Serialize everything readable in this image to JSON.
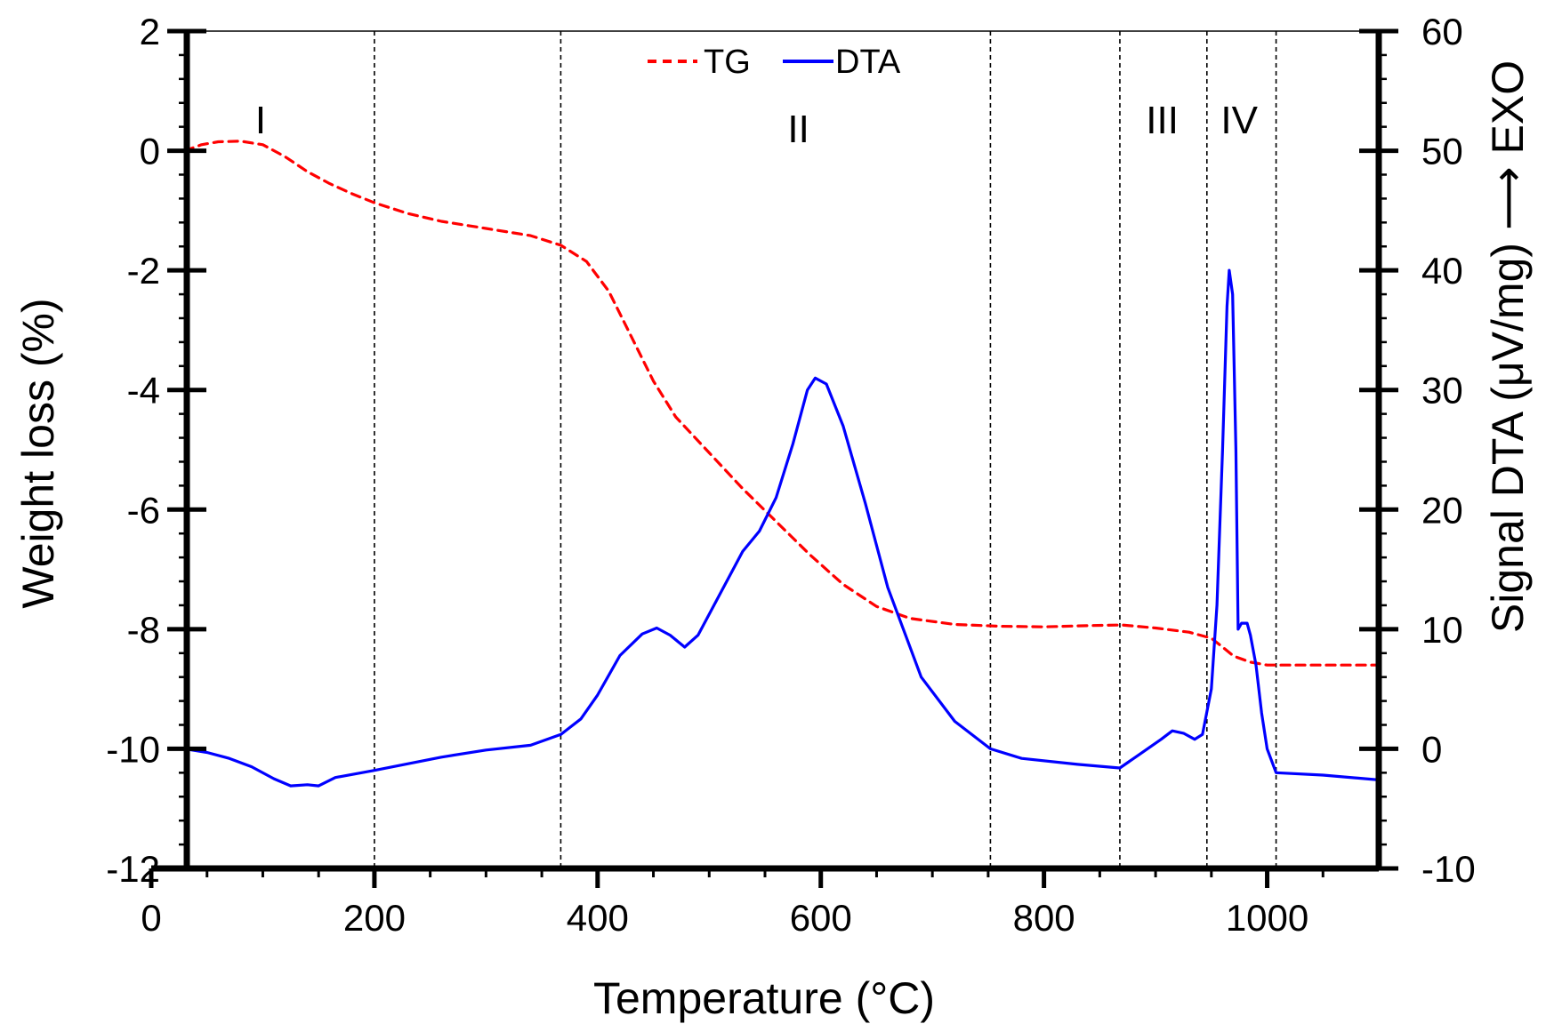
{
  "chart_data": {
    "type": "line",
    "xlabel": "Temperature (°C)",
    "ylabel": "Weight loss (%)",
    "y2label": "Signal DTA (μV/mg)  ⟶  EXO",
    "xlim": [
      0,
      1100
    ],
    "ylim": [
      -12,
      2
    ],
    "y2lim": [
      -10,
      60
    ],
    "xticks": [
      0,
      200,
      400,
      600,
      800,
      1000
    ],
    "yticks": [
      2,
      0,
      -2,
      -4,
      -6,
      -8,
      -10,
      -12
    ],
    "y2ticks": [
      60,
      50,
      40,
      30,
      20,
      10,
      0,
      -10
    ],
    "legend_position": "top-center",
    "grid": false,
    "region_boundaries": [
      200,
      367,
      752,
      868,
      946,
      1008
    ],
    "regions": [
      {
        "label": "I",
        "x": 98
      },
      {
        "label": "II",
        "x": 580
      },
      {
        "label": "III",
        "x": 906
      },
      {
        "label": "IV",
        "x": 975
      }
    ],
    "series": [
      {
        "name": "TG",
        "axis": "left",
        "color": "#ff0000",
        "style": "dashed",
        "points": [
          [
            30,
            0
          ],
          [
            45,
            0.1
          ],
          [
            60,
            0.15
          ],
          [
            80,
            0.16
          ],
          [
            100,
            0.1
          ],
          [
            120,
            -0.1
          ],
          [
            140,
            -0.35
          ],
          [
            160,
            -0.55
          ],
          [
            180,
            -0.72
          ],
          [
            200,
            -0.87
          ],
          [
            230,
            -1.05
          ],
          [
            260,
            -1.18
          ],
          [
            300,
            -1.3
          ],
          [
            340,
            -1.42
          ],
          [
            367,
            -1.58
          ],
          [
            390,
            -1.85
          ],
          [
            410,
            -2.35
          ],
          [
            430,
            -3.1
          ],
          [
            450,
            -3.85
          ],
          [
            470,
            -4.45
          ],
          [
            500,
            -5.05
          ],
          [
            530,
            -5.65
          ],
          [
            560,
            -6.2
          ],
          [
            590,
            -6.75
          ],
          [
            620,
            -7.25
          ],
          [
            650,
            -7.62
          ],
          [
            680,
            -7.82
          ],
          [
            720,
            -7.92
          ],
          [
            760,
            -7.95
          ],
          [
            800,
            -7.96
          ],
          [
            840,
            -7.94
          ],
          [
            870,
            -7.93
          ],
          [
            900,
            -7.98
          ],
          [
            930,
            -8.05
          ],
          [
            950,
            -8.15
          ],
          [
            960,
            -8.3
          ],
          [
            970,
            -8.45
          ],
          [
            985,
            -8.55
          ],
          [
            1000,
            -8.6
          ],
          [
            1050,
            -8.6
          ],
          [
            1100,
            -8.6
          ]
        ]
      },
      {
        "name": "DTA",
        "axis": "right",
        "color": "#0000ff",
        "style": "solid",
        "points": [
          [
            30,
            0
          ],
          [
            50,
            -0.3
          ],
          [
            70,
            -0.8
          ],
          [
            90,
            -1.5
          ],
          [
            110,
            -2.5
          ],
          [
            125,
            -3.1
          ],
          [
            140,
            -3.0
          ],
          [
            150,
            -3.1
          ],
          [
            165,
            -2.4
          ],
          [
            200,
            -1.8
          ],
          [
            260,
            -0.7
          ],
          [
            300,
            -0.1
          ],
          [
            340,
            0.3
          ],
          [
            367,
            1.2
          ],
          [
            385,
            2.5
          ],
          [
            400,
            4.5
          ],
          [
            420,
            7.8
          ],
          [
            440,
            9.6
          ],
          [
            453,
            10.1
          ],
          [
            465,
            9.5
          ],
          [
            478,
            8.5
          ],
          [
            490,
            9.5
          ],
          [
            510,
            13
          ],
          [
            530,
            16.5
          ],
          [
            545,
            18.2
          ],
          [
            560,
            21
          ],
          [
            575,
            25.5
          ],
          [
            588,
            30
          ],
          [
            595,
            31
          ],
          [
            605,
            30.5
          ],
          [
            620,
            27
          ],
          [
            640,
            20.5
          ],
          [
            660,
            13.5
          ],
          [
            690,
            6
          ],
          [
            720,
            2.3
          ],
          [
            752,
            0
          ],
          [
            780,
            -0.8
          ],
          [
            830,
            -1.3
          ],
          [
            868,
            -1.6
          ],
          [
            885,
            -0.5
          ],
          [
            905,
            0.8
          ],
          [
            915,
            1.5
          ],
          [
            925,
            1.3
          ],
          [
            935,
            0.8
          ],
          [
            942,
            1.2
          ],
          [
            950,
            5
          ],
          [
            955,
            12
          ],
          [
            960,
            25
          ],
          [
            964,
            37
          ],
          [
            966,
            40
          ],
          [
            969,
            38
          ],
          [
            972,
            25
          ],
          [
            974,
            10
          ],
          [
            977,
            10.5
          ],
          [
            982,
            10.5
          ],
          [
            985,
            9.5
          ],
          [
            990,
            7
          ],
          [
            995,
            3
          ],
          [
            1000,
            0
          ],
          [
            1008,
            -2
          ],
          [
            1050,
            -2.2
          ],
          [
            1100,
            -2.6
          ]
        ]
      }
    ]
  }
}
